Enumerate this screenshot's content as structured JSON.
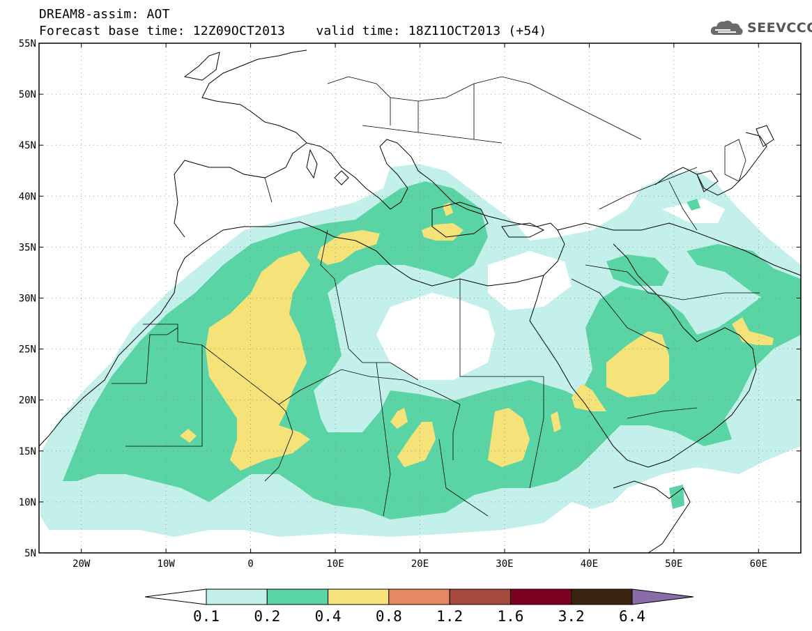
{
  "header": {
    "title": "DREAM8-assim: AOT",
    "base_time": "Forecast base time: 12Z09OCT2013",
    "valid_time": "valid time: 18Z11OCT2013 (+54)",
    "logo_text": "SEEVCCC",
    "logo_icon": "cloud-icon"
  },
  "map": {
    "projection": "lat-lon",
    "lon_range": [
      -25,
      65
    ],
    "lat_range": [
      5,
      55
    ],
    "lon_ticks": [
      "20W",
      "10W",
      "0",
      "10E",
      "20E",
      "30E",
      "40E",
      "50E",
      "60E"
    ],
    "lat_ticks": [
      "55N",
      "50N",
      "45N",
      "40N",
      "35N",
      "30N",
      "25N",
      "20N",
      "15N",
      "10N",
      "5N"
    ],
    "grid": "dotted"
  },
  "colorbar": {
    "labels": [
      "0.1",
      "0.2",
      "0.4",
      "0.8",
      "1.2",
      "1.6",
      "3.2",
      "6.4"
    ],
    "colors": [
      "#ffffff",
      "#c3f0ea",
      "#5ad4a4",
      "#f5e37a",
      "#e58a62",
      "#a34a3c",
      "#7d0022",
      "#3b2312",
      "#8a6ca8"
    ]
  }
}
